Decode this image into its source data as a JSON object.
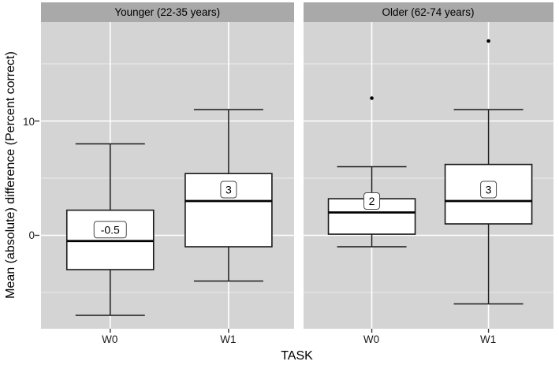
{
  "chart_data": {
    "type": "boxplot",
    "title": "",
    "xlabel": "TASK",
    "ylabel": "Mean (absolute) difference (Percent correct)",
    "categories": [
      "W0",
      "W1"
    ],
    "y_ticks": [
      10,
      0
    ],
    "y_tick_labels": [
      "10",
      "0"
    ],
    "y_minor_gridlines": [
      15,
      5,
      -5
    ],
    "ylim": [
      -8.2,
      18.6
    ],
    "grid": "on",
    "legend": "none",
    "colors": {
      "strip_bg": "#a9a9a9",
      "panel_bg": "#d4d4d4",
      "box_fill": "#ffffff",
      "line": "#1a1a1a",
      "median_line": "#000000",
      "gridline": "#ffffff",
      "label_border": "#4a4a4a"
    },
    "facets": [
      {
        "label": "Younger (22-35 years)",
        "boxes": [
          {
            "category": "W0",
            "whisker_low": -7,
            "q1": -3,
            "median": -0.5,
            "q3": 2.2,
            "whisker_high": 8,
            "median_label": "-0.5",
            "outliers": []
          },
          {
            "category": "W1",
            "whisker_low": -4,
            "q1": -1,
            "median": 3,
            "q3": 5.4,
            "whisker_high": 11,
            "median_label": "3",
            "outliers": []
          }
        ]
      },
      {
        "label": "Older (62-74 years)",
        "boxes": [
          {
            "category": "W0",
            "whisker_low": -1,
            "q1": 0.1,
            "median": 2,
            "q3": 3.2,
            "whisker_high": 6,
            "median_label": "2",
            "outliers": [
              12
            ]
          },
          {
            "category": "W1",
            "whisker_low": -6,
            "q1": 1,
            "median": 3,
            "q3": 6.2,
            "whisker_high": 11,
            "median_label": "3",
            "outliers": [
              17
            ]
          }
        ]
      }
    ]
  }
}
